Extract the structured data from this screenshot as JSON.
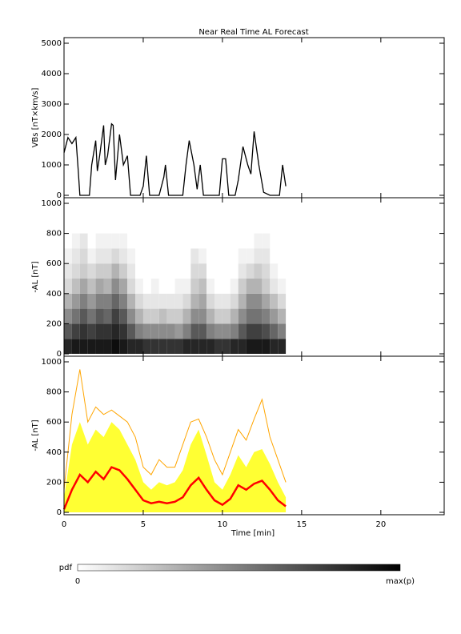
{
  "chart_data": [
    {
      "type": "line",
      "title": "Near Real Time AL Forecast",
      "ylabel": "VBs [nT×km/s]",
      "xlim": [
        0,
        24
      ],
      "xticks": [
        0,
        5,
        10,
        15,
        20
      ],
      "ylim": [
        0,
        5000
      ],
      "yticks": [
        0,
        1000,
        2000,
        3000,
        4000,
        5000
      ],
      "color": "#000000",
      "x": [
        0,
        0.25,
        0.5,
        0.75,
        0.9,
        1.0,
        1.6,
        1.75,
        2.0,
        2.1,
        2.25,
        2.5,
        2.6,
        2.75,
        3.0,
        3.1,
        3.25,
        3.5,
        3.75,
        4.0,
        4.2,
        4.8,
        5.0,
        5.2,
        5.4,
        6.0,
        6.3,
        6.4,
        6.6,
        7.5,
        7.7,
        7.9,
        8.2,
        8.4,
        8.6,
        8.8,
        9.8,
        10.0,
        10.2,
        10.4,
        10.8,
        11.0,
        11.3,
        11.6,
        11.8,
        12.0,
        12.3,
        12.6,
        13.0,
        13.6,
        13.8,
        14.0
      ],
      "values": [
        1400,
        1900,
        1700,
        1900,
        800,
        0,
        0,
        1000,
        1800,
        800,
        1300,
        2300,
        1000,
        1300,
        2350,
        2300,
        500,
        2000,
        1000,
        1300,
        0,
        0,
        300,
        1300,
        0,
        0,
        600,
        1000,
        0,
        0,
        1000,
        1800,
        1000,
        200,
        1000,
        0,
        0,
        1200,
        1200,
        0,
        0,
        500,
        1600,
        1000,
        700,
        2100,
        1000,
        100,
        0,
        0,
        1000,
        300
      ]
    },
    {
      "type": "heatmap",
      "ylabel": "-AL [nT]",
      "xlim": [
        0,
        24
      ],
      "xticks": [
        0,
        5,
        10,
        15,
        20
      ],
      "ylim": [
        0,
        1000
      ],
      "yticks": [
        0,
        200,
        400,
        600,
        800,
        1000
      ],
      "x_bins": [
        0,
        0.5,
        1,
        1.5,
        2,
        2.5,
        3,
        3.5,
        4,
        4.5,
        5,
        5.5,
        6,
        6.5,
        7,
        7.5,
        8,
        8.5,
        9,
        9.5,
        10,
        10.5,
        11,
        11.5,
        12,
        12.5,
        13,
        13.5,
        14
      ],
      "y_bins": [
        0,
        100,
        200,
        300,
        400,
        500,
        600,
        700,
        800
      ],
      "values": [
        [
          0.85,
          0.65,
          0.45,
          0.3,
          0.15,
          0.1,
          0.05,
          0
        ],
        [
          0.9,
          0.75,
          0.55,
          0.4,
          0.25,
          0.15,
          0.1,
          0.05
        ],
        [
          0.9,
          0.8,
          0.65,
          0.5,
          0.35,
          0.2,
          0.15,
          0.1
        ],
        [
          0.9,
          0.75,
          0.55,
          0.4,
          0.25,
          0.15,
          0.05,
          0
        ],
        [
          0.9,
          0.8,
          0.65,
          0.5,
          0.35,
          0.2,
          0.1,
          0.05
        ],
        [
          0.9,
          0.8,
          0.6,
          0.5,
          0.3,
          0.2,
          0.1,
          0.05
        ],
        [
          0.95,
          0.85,
          0.75,
          0.6,
          0.45,
          0.3,
          0.15,
          0.05
        ],
        [
          0.9,
          0.8,
          0.65,
          0.5,
          0.35,
          0.2,
          0.1,
          0.05
        ],
        [
          0.85,
          0.65,
          0.45,
          0.3,
          0.15,
          0.1,
          0.05,
          0
        ],
        [
          0.85,
          0.5,
          0.3,
          0.15,
          0.05,
          0,
          0,
          0
        ],
        [
          0.8,
          0.45,
          0.2,
          0.1,
          0,
          0,
          0,
          0
        ],
        [
          0.8,
          0.45,
          0.2,
          0.1,
          0.05,
          0,
          0,
          0
        ],
        [
          0.8,
          0.45,
          0.25,
          0.1,
          0,
          0,
          0,
          0
        ],
        [
          0.8,
          0.45,
          0.2,
          0.1,
          0,
          0,
          0,
          0
        ],
        [
          0.8,
          0.4,
          0.2,
          0.1,
          0.05,
          0,
          0,
          0
        ],
        [
          0.85,
          0.5,
          0.3,
          0.15,
          0.05,
          0,
          0,
          0
        ],
        [
          0.85,
          0.65,
          0.45,
          0.3,
          0.2,
          0.15,
          0.1,
          0
        ],
        [
          0.85,
          0.65,
          0.45,
          0.35,
          0.25,
          0.15,
          0.05,
          0
        ],
        [
          0.85,
          0.5,
          0.3,
          0.15,
          0.05,
          0,
          0,
          0
        ],
        [
          0.8,
          0.45,
          0.2,
          0.1,
          0,
          0,
          0,
          0
        ],
        [
          0.8,
          0.45,
          0.2,
          0.1,
          0,
          0,
          0,
          0
        ],
        [
          0.85,
          0.5,
          0.3,
          0.15,
          0.05,
          0,
          0,
          0
        ],
        [
          0.85,
          0.65,
          0.45,
          0.3,
          0.2,
          0.1,
          0.05,
          0
        ],
        [
          0.9,
          0.75,
          0.55,
          0.45,
          0.3,
          0.15,
          0.05,
          0
        ],
        [
          0.9,
          0.75,
          0.55,
          0.45,
          0.3,
          0.2,
          0.1,
          0.05
        ],
        [
          0.9,
          0.7,
          0.5,
          0.35,
          0.2,
          0.15,
          0.1,
          0.05
        ],
        [
          0.85,
          0.6,
          0.4,
          0.25,
          0.1,
          0.05,
          0,
          0
        ],
        [
          0.85,
          0.5,
          0.3,
          0.15,
          0.05,
          0,
          0,
          0
        ]
      ],
      "colorbar": {
        "label": "pdf",
        "min_label": "0",
        "max_label": "max(p)"
      }
    },
    {
      "type": "band",
      "ylabel": "-AL [nT]",
      "xlabel": "Time [min]",
      "xlim": [
        0,
        24
      ],
      "xticks": [
        0,
        5,
        10,
        15,
        20
      ],
      "ylim": [
        0,
        1000
      ],
      "yticks": [
        0,
        200,
        400,
        600,
        800,
        1000
      ],
      "x": [
        0,
        0.5,
        1,
        1.5,
        2,
        2.5,
        3,
        3.5,
        4,
        4.5,
        5,
        5.5,
        6,
        6.5,
        7,
        7.5,
        8,
        8.5,
        9,
        9.5,
        10,
        10.5,
        11,
        11.5,
        12,
        12.5,
        13,
        13.5,
        14
      ],
      "series": [
        {
          "color": "#ffff33",
          "style": "area",
          "values": [
            100,
            450,
            600,
            450,
            550,
            500,
            600,
            550,
            450,
            350,
            200,
            150,
            200,
            180,
            200,
            280,
            450,
            550,
            380,
            200,
            150,
            250,
            380,
            300,
            400,
            420,
            320,
            200,
            100
          ]
        },
        {
          "color": "#ffa500",
          "style": "line",
          "values": [
            150,
            650,
            950,
            600,
            700,
            650,
            680,
            640,
            600,
            500,
            300,
            250,
            350,
            300,
            300,
            450,
            600,
            620,
            500,
            350,
            250,
            400,
            550,
            480,
            620,
            750,
            500,
            350,
            200
          ]
        },
        {
          "color": "#ff0000",
          "style": "line",
          "values": [
            20,
            150,
            250,
            200,
            270,
            220,
            300,
            280,
            220,
            150,
            80,
            60,
            70,
            60,
            70,
            100,
            180,
            230,
            150,
            80,
            50,
            90,
            180,
            150,
            190,
            210,
            150,
            80,
            40
          ]
        }
      ]
    }
  ]
}
